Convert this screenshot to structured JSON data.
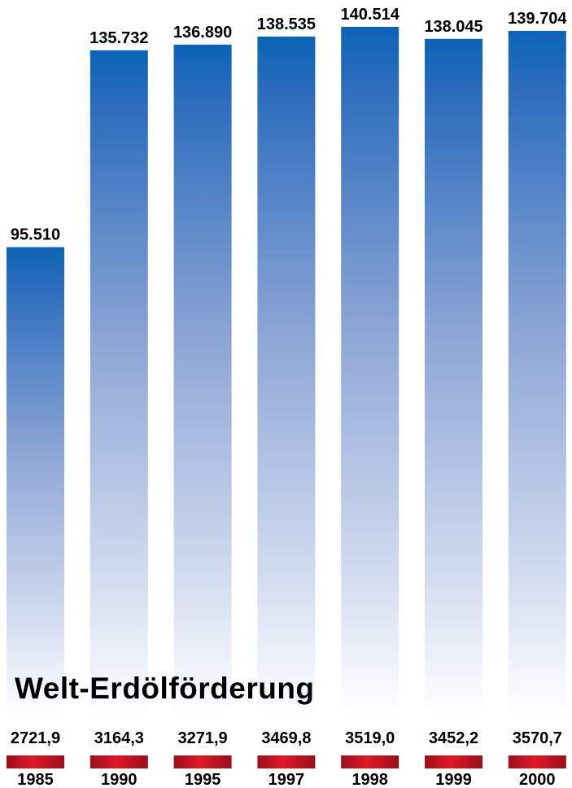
{
  "chart_data": {
    "type": "bar",
    "title": "Welt-Erdölförderung",
    "categories": [
      "1985",
      "1990",
      "1995",
      "1997",
      "1998",
      "1999",
      "2000"
    ],
    "series": [
      {
        "values": [
          95.51,
          135.732,
          136.89,
          138.535,
          140.514,
          138.045,
          139.704
        ],
        "labels": [
          "95.510",
          "135.732",
          "136.890",
          "138.535",
          "140.514",
          "138.045",
          "139.704"
        ]
      },
      {
        "values": [
          2721.9,
          3164.3,
          3271.9,
          3469.8,
          3519.0,
          3452.2,
          3570.7
        ],
        "labels": [
          "2721,9",
          "3164,3",
          "3271,9",
          "3469,8",
          "3519,0",
          "3452,2",
          "3570,7"
        ]
      }
    ],
    "ylim": [
      0,
      141
    ],
    "grid": false,
    "legend": "none",
    "colors": {
      "bar_top": "#0b63b6",
      "bar_bottom": "#ffffff",
      "marker_dark": "#9a0f1c",
      "marker_light": "#e01828"
    }
  }
}
